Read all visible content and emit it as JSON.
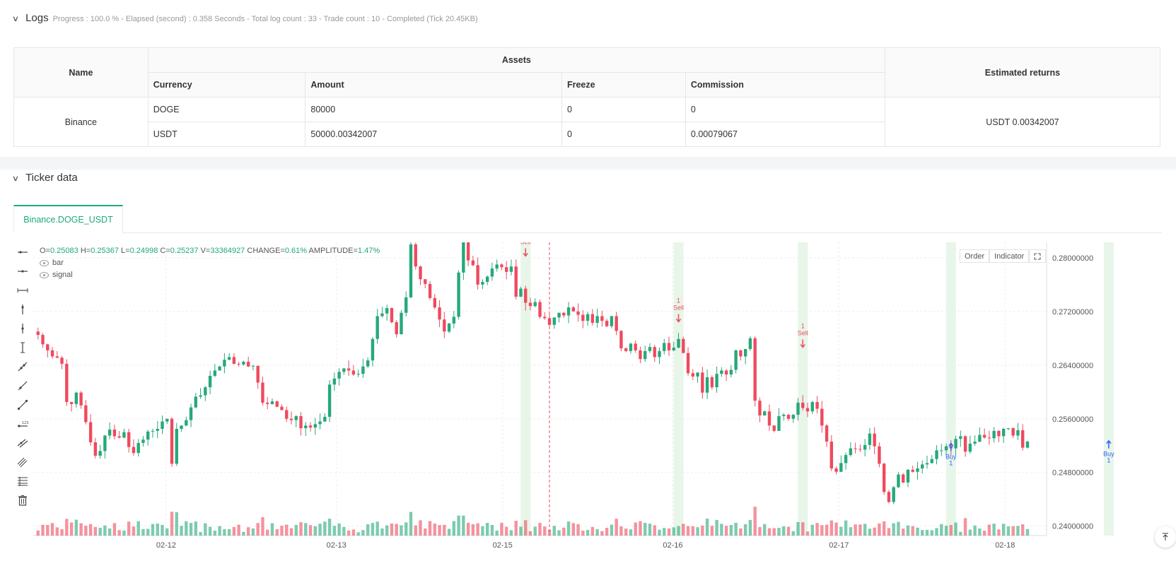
{
  "logs": {
    "title": "Logs",
    "status": "Progress : 100.0 % - Elapsed (second) : 0.358  Seconds - Total log count : 33 - Trade count : 10 - Completed (Tick 20.45KB)",
    "table": {
      "headers": {
        "name": "Name",
        "assets": "Assets",
        "returns": "Estimated returns"
      },
      "subheaders": [
        "Currency",
        "Amount",
        "Freeze",
        "Commission"
      ],
      "exchange": "Binance",
      "rows": [
        {
          "currency": "DOGE",
          "amount": "80000",
          "freeze": "0",
          "commission": "0"
        },
        {
          "currency": "USDT",
          "amount": "50000.00342007",
          "freeze": "0",
          "commission": "0.00079067"
        }
      ],
      "returns_value": "USDT 0.00342007"
    }
  },
  "ticker": {
    "title": "Ticker data",
    "tab_label": "Binance.DOGE_USDT",
    "ohlc": {
      "o_label": "O=",
      "o": "0.25083",
      "h_label": "H=",
      "h": "0.25367",
      "l_label": "L=",
      "l": "0.24998",
      "c_label": "C=",
      "c": "0.25237",
      "v_label": "V=",
      "v": "33364927",
      "change_label": "CHANGE=",
      "change": "0.61%",
      "amp_label": "AMPLITUDE=",
      "amp": "1.47%"
    },
    "legend": [
      "bar",
      "signal"
    ],
    "buttons": {
      "order": "Order",
      "indicator": "Indicator"
    }
  },
  "colors": {
    "up": "#26a87a",
    "down": "#ef4a5e",
    "accent": "#1ea97c",
    "buy": "#2962ff",
    "highlight": "#e8f5e9"
  },
  "chart_data": {
    "type": "candlestick",
    "symbol": "Binance.DOGE_USDT",
    "x_ticks": [
      "02-12",
      "02-13",
      "02-15",
      "02-16",
      "02-17",
      "02-18"
    ],
    "y_ticks": [
      "0.28000000",
      "0.27200000",
      "0.26400000",
      "0.25600000",
      "0.24800000",
      "0.24000000"
    ],
    "ylim": [
      0.2386,
      0.2823
    ],
    "signals": [
      {
        "type": "sell",
        "count": "1",
        "label": "Sell",
        "date": "02-15 ~20:00",
        "price": 0.2791
      },
      {
        "type": "sell",
        "count": "1",
        "label": "Sell",
        "date": "02-16 ~20:00",
        "price": 0.2693
      },
      {
        "type": "sell",
        "count": "1",
        "label": "Sell",
        "date": "02-17 ~04:00",
        "price": 0.2655
      },
      {
        "type": "buy",
        "count": "1",
        "label": "Buy",
        "date": "02-18 ~00:00",
        "price": 0.2535
      },
      {
        "type": "buy",
        "count": "1",
        "label": "Buy",
        "date": "02-18 ~20:00",
        "price": 0.2539
      }
    ],
    "closes": [
      0.2685,
      0.2671,
      0.2662,
      0.2653,
      0.2651,
      0.2642,
      0.2585,
      0.2582,
      0.2599,
      0.258,
      0.2555,
      0.2525,
      0.2505,
      0.2512,
      0.2535,
      0.2544,
      0.2534,
      0.2532,
      0.254,
      0.2518,
      0.2509,
      0.2524,
      0.2529,
      0.2541,
      0.2542,
      0.2545,
      0.2556,
      0.256,
      0.2493,
      0.2545,
      0.255,
      0.2558,
      0.2577,
      0.2593,
      0.2595,
      0.2607,
      0.2624,
      0.2632,
      0.2638,
      0.2648,
      0.2652,
      0.2642,
      0.2641,
      0.2645,
      0.2638,
      0.2639,
      0.2614,
      0.2584,
      0.2582,
      0.2586,
      0.2578,
      0.2573,
      0.256,
      0.2558,
      0.2564,
      0.2546,
      0.255,
      0.2547,
      0.2552,
      0.2556,
      0.2563,
      0.2611,
      0.262,
      0.263,
      0.2635,
      0.2632,
      0.2626,
      0.2627,
      0.2638,
      0.2647,
      0.2679,
      0.2713,
      0.2717,
      0.2725,
      0.2704,
      0.2686,
      0.2718,
      0.2741,
      0.282,
      0.2787,
      0.2768,
      0.2761,
      0.274,
      0.2726,
      0.2708,
      0.269,
      0.2702,
      0.2712,
      0.2778,
      0.283,
      0.2796,
      0.2789,
      0.276,
      0.2764,
      0.2772,
      0.2784,
      0.279,
      0.2786,
      0.2779,
      0.2787,
      0.2742,
      0.2754,
      0.2733,
      0.2728,
      0.2734,
      0.2712,
      0.271,
      0.27,
      0.2711,
      0.2718,
      0.2714,
      0.2726,
      0.272,
      0.2715,
      0.2706,
      0.2716,
      0.2703,
      0.2713,
      0.2706,
      0.2698,
      0.2713,
      0.2691,
      0.2665,
      0.2661,
      0.2672,
      0.2662,
      0.2649,
      0.2661,
      0.2667,
      0.2652,
      0.2661,
      0.2673,
      0.2662,
      0.2666,
      0.2679,
      0.2658,
      0.2628,
      0.2623,
      0.2629,
      0.2599,
      0.2622,
      0.2607,
      0.2627,
      0.2632,
      0.2626,
      0.2633,
      0.2662,
      0.2653,
      0.2664,
      0.268,
      0.2587,
      0.2565,
      0.2571,
      0.255,
      0.2542,
      0.2564,
      0.2566,
      0.256,
      0.2566,
      0.2584,
      0.2576,
      0.2571,
      0.2585,
      0.2575,
      0.255,
      0.2526,
      0.2486,
      0.2481,
      0.2494,
      0.2506,
      0.2516,
      0.2515,
      0.2514,
      0.2521,
      0.2538,
      0.2519,
      0.2493,
      0.2451,
      0.2436,
      0.2458,
      0.2477,
      0.2465,
      0.2484,
      0.2481,
      0.2486,
      0.2492,
      0.2494,
      0.25,
      0.2513,
      0.2513,
      0.2519,
      0.2516,
      0.253,
      0.2534,
      0.2511,
      0.2523,
      0.2526,
      0.2536,
      0.2532,
      0.2531,
      0.2542,
      0.2534,
      0.2545,
      0.2546,
      0.2535,
      0.2543,
      0.2517,
      0.2526
    ]
  }
}
